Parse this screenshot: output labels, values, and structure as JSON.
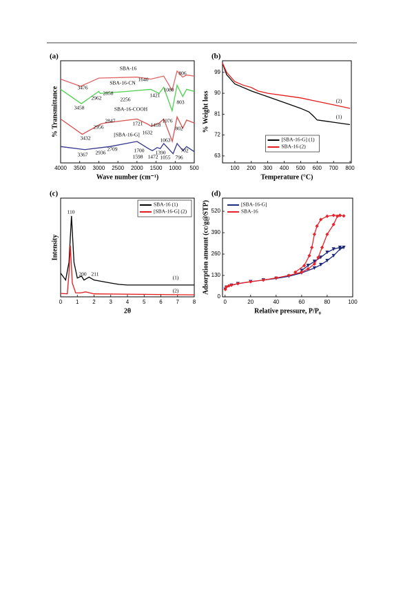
{
  "chart_data": [
    {
      "type": "line",
      "label": "(a)",
      "xlabel": "Wave number (cm⁻¹)",
      "ylabel": "% Transmittance",
      "xlim": [
        4000,
        500
      ],
      "xticks": [
        4000,
        3500,
        3000,
        2500,
        2000,
        1500,
        1000,
        500
      ],
      "ylim": [
        0,
        100
      ],
      "series": [
        {
          "name": "SBA-16",
          "color": "#e06464",
          "x": [
            4000,
            3476,
            3000,
            2000,
            1640,
            1300,
            1080,
            950,
            806,
            700,
            500
          ],
          "values": [
            82,
            75,
            83,
            84,
            82,
            85,
            71,
            90,
            84,
            86,
            85
          ]
        },
        {
          "name": "SBA-16-CN",
          "color": "#4fd04f",
          "x": [
            4000,
            3458,
            3000,
            2962,
            2256,
            1640,
            1421,
            1300,
            1080,
            950,
            803,
            700,
            500
          ],
          "values": [
            72,
            58,
            70,
            68,
            70,
            72,
            68,
            74,
            51,
            76,
            65,
            72,
            70
          ]
        },
        {
          "name": "SBA-16-COOH",
          "color": "#d85050",
          "x": [
            4000,
            3432,
            2956,
            2847,
            2000,
            1721,
            1632,
            1418,
            1300,
            1076,
            950,
            802,
            700,
            500
          ],
          "values": [
            43,
            28,
            38,
            39,
            43,
            38,
            36,
            39,
            43,
            21,
            45,
            34,
            42,
            39
          ]
        },
        {
          "name": "[SBA-16-G]",
          "color": "#34348f",
          "x": [
            4000,
            3367,
            2936,
            2709,
            2000,
            1700,
            1598,
            1472,
            1390,
            1300,
            1055,
            950,
            796,
            702,
            500
          ],
          "values": [
            16,
            13,
            15,
            16,
            21,
            14,
            12,
            15,
            14,
            19,
            9,
            19,
            12,
            16,
            11
          ]
        }
      ],
      "annotations": [
        "3476",
        "1640",
        "806",
        "2962",
        "2858",
        "2256",
        "1421",
        "1080",
        "3458",
        "803",
        "2847",
        "1721",
        "1418",
        "2956",
        "1632",
        "1076",
        "802",
        "3432",
        "1063",
        "2709",
        "1700",
        "1390",
        "702",
        "3367",
        "2936",
        "1598",
        "1472",
        "1055",
        "796"
      ]
    },
    {
      "type": "line",
      "label": "(b)",
      "xlabel": "Temperature (°C)",
      "ylabel": "% Weight loss",
      "xlim": [
        25,
        808
      ],
      "xticks": [
        100,
        200,
        300,
        400,
        500,
        600,
        700,
        800
      ],
      "ylim": [
        60,
        104
      ],
      "yticks": [
        63,
        72,
        81,
        90,
        99
      ],
      "legend": "lower center",
      "series": [
        {
          "name": "[SBA-16-G] (1)",
          "color": "#000000",
          "x": [
            25,
            50,
            100,
            150,
            200,
            300,
            400,
            500,
            550,
            580,
            600,
            650,
            700,
            800
          ],
          "values": [
            103,
            98,
            94,
            92.5,
            91,
            88.5,
            86,
            83.5,
            82,
            80,
            78.5,
            78,
            77.5,
            76.5
          ]
        },
        {
          "name": "SBA-16 (2)",
          "color": "#e41a1c",
          "x": [
            25,
            50,
            100,
            150,
            200,
            240,
            300,
            400,
            500,
            600,
            700,
            800
          ],
          "values": [
            103,
            99,
            95,
            93.5,
            92.5,
            91,
            90,
            89,
            88,
            86.5,
            85,
            83.5
          ]
        }
      ],
      "annotations": [
        "(2)",
        "(1)"
      ]
    },
    {
      "type": "line",
      "label": "(c)",
      "xlabel": "2θ",
      "ylabel": "Intensity",
      "xlim": [
        0,
        8
      ],
      "xticks": [
        0,
        1,
        2,
        3,
        4,
        5,
        6,
        7,
        8
      ],
      "ylim": [
        0,
        100
      ],
      "legend": "upper right",
      "series": [
        {
          "name": "SBA-16 (1)",
          "color": "#000000",
          "x": [
            0,
            0.3,
            0.5,
            0.65,
            0.8,
            1.0,
            1.25,
            1.4,
            1.7,
            2,
            3,
            3.5,
            4,
            8
          ],
          "values": [
            24,
            17,
            35,
            82,
            35,
            19,
            21,
            17,
            20,
            17,
            14,
            12.6,
            12,
            12
          ]
        },
        {
          "name": "[SBA-16-G] (2)",
          "color": "#e41a1c",
          "x": [
            0,
            0.4,
            0.5,
            0.58,
            0.7,
            0.9,
            1.2,
            1.5,
            2,
            8
          ],
          "values": [
            3.5,
            3,
            24,
            52,
            14,
            4,
            4,
            5,
            3,
            2
          ]
        }
      ],
      "annotations": [
        "110",
        "200",
        "211",
        "(1)",
        "(2)"
      ]
    },
    {
      "type": "line",
      "label": "(d)",
      "xlabel": "Relative pressure, P/P₀",
      "ylabel": "Adsorption amount (cc/g@STP)",
      "xlim": [
        -2,
        100
      ],
      "xticks": [
        0,
        20,
        40,
        60,
        80,
        100
      ],
      "ylim": [
        0,
        600
      ],
      "yticks": [
        0,
        130,
        260,
        390,
        520
      ],
      "legend": "upper left",
      "series": [
        {
          "name": "[SBA-16-G]",
          "color": "#1b2a7b",
          "marker": "triangle-down",
          "x": [
            0.2,
            1,
            5,
            10,
            20,
            30,
            40,
            50,
            60,
            70,
            75,
            80,
            85,
            90,
            93,
            90,
            85,
            80,
            75,
            70,
            65,
            60
          ],
          "values": [
            45,
            58,
            70,
            80,
            92,
            102,
            112,
            125,
            145,
            175,
            195,
            220,
            250,
            290,
            300,
            300,
            290,
            270,
            240,
            215,
            190,
            160
          ]
        },
        {
          "name": "SBA-16",
          "color": "#e8222a",
          "marker": "diamond",
          "x": [
            0.2,
            1,
            3,
            5,
            10,
            20,
            30,
            40,
            50,
            60,
            65,
            70,
            73,
            76,
            80,
            85,
            88,
            90,
            93,
            90,
            85,
            80,
            75,
            72,
            70,
            68,
            66,
            62,
            55
          ],
          "values": [
            45,
            60,
            67,
            72,
            80,
            92,
            102,
            115,
            130,
            150,
            170,
            200,
            240,
            300,
            380,
            440,
            490,
            495,
            492,
            495,
            495,
            490,
            470,
            430,
            380,
            300,
            250,
            190,
            150
          ]
        }
      ]
    }
  ]
}
